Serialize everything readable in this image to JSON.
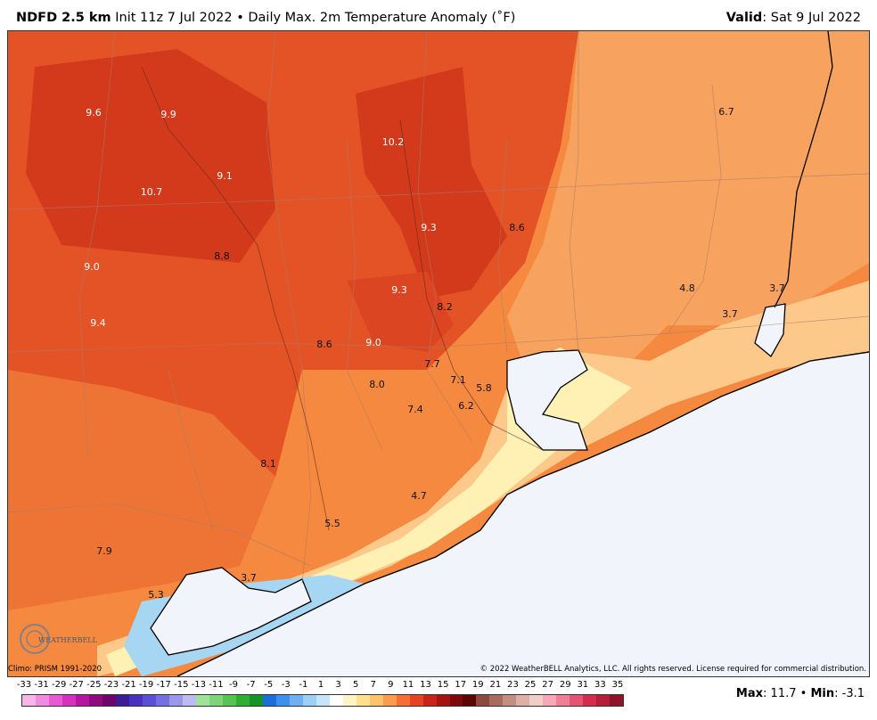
{
  "header": {
    "product": "NDFD 2.5 km",
    "init": "Init 11z 7 Jul 2022",
    "separator": "•",
    "description": "Daily Max. 2m Temperature Anomaly (˚F)",
    "valid_label": "Valid",
    "valid_value": ": Sat 9 Jul 2022"
  },
  "map": {
    "labels": [
      {
        "text": "9.6",
        "light": true
      },
      {
        "text": "9.9",
        "light": true
      },
      {
        "text": "10.2",
        "light": true
      },
      {
        "text": "6.7",
        "light": false
      },
      {
        "text": "9.1",
        "light": true
      },
      {
        "text": "10.7",
        "light": true
      },
      {
        "text": "9.3",
        "light": true
      },
      {
        "text": "8.6",
        "light": false
      },
      {
        "text": "9.0",
        "light": true
      },
      {
        "text": "8.8",
        "light": false
      },
      {
        "text": "9.3",
        "light": true
      },
      {
        "text": "8.2",
        "light": false
      },
      {
        "text": "4.8",
        "light": false
      },
      {
        "text": "3.7",
        "light": false
      },
      {
        "text": "3.7",
        "light": false
      },
      {
        "text": "9.4",
        "light": true
      },
      {
        "text": "8.6",
        "light": false
      },
      {
        "text": "9.0",
        "light": true
      },
      {
        "text": "7.7",
        "light": false
      },
      {
        "text": "7.1",
        "light": false
      },
      {
        "text": "5.8",
        "light": false
      },
      {
        "text": "8.0",
        "light": false
      },
      {
        "text": "7.4",
        "light": false
      },
      {
        "text": "6.2",
        "light": false
      },
      {
        "text": "8.1",
        "light": false
      },
      {
        "text": "4.7",
        "light": false
      },
      {
        "text": "5.5",
        "light": false
      },
      {
        "text": "7.9",
        "light": false
      },
      {
        "text": "3.7",
        "light": false
      },
      {
        "text": "5.3",
        "light": false
      }
    ],
    "logo_text": "WEATHERBELL",
    "colors": {
      "hot": "#d93a1b",
      "warm": "#ee6a2b",
      "mild": "#f99a55",
      "cool": "#fbc98a",
      "pale": "#fff1b8",
      "cold": "#a9d9f2",
      "water": "#f1f4fb",
      "coast": "#000000"
    }
  },
  "footer": {
    "climo": "Climo: PRISM 1991-2020",
    "copyright": "© 2022 WeatherBELL Analytics, LLC. All rights reserved. License required for commercial distribution."
  },
  "colorbar": {
    "ticks": [
      "-33",
      "-31",
      "-29",
      "-27",
      "-25",
      "-23",
      "-21",
      "-19",
      "-17",
      "-15",
      "-13",
      "-11",
      "-9",
      "-7",
      "-5",
      "-3",
      "-1",
      "1",
      "3",
      "5",
      "7",
      "9",
      "11",
      "13",
      "15",
      "17",
      "19",
      "21",
      "23",
      "25",
      "27",
      "29",
      "31",
      "33",
      "35"
    ],
    "colors": [
      "#f7b5e8",
      "#f08ce0",
      "#e85ad2",
      "#d631bd",
      "#b4169f",
      "#8f0a80",
      "#6d056a",
      "#3c1e94",
      "#4a32c0",
      "#5b4fd6",
      "#7570e0",
      "#9a98ea",
      "#bebbf1",
      "#9fe29b",
      "#7dd578",
      "#55c453",
      "#2fae2f",
      "#18932a",
      "#1c6fd8",
      "#3f90ea",
      "#6eb0f1",
      "#9cd0f5",
      "#c4e6f8",
      "#ffffff",
      "#fff4c4",
      "#fee08f",
      "#fdc26a",
      "#fb9b4d",
      "#f56f34",
      "#e54422",
      "#c9241a",
      "#a51313",
      "#7d0909",
      "#5a0606",
      "#8b4a3c",
      "#a86b5f",
      "#c48e84",
      "#ddb0a7",
      "#f1cfc8",
      "#f7a8b8",
      "#f07e95",
      "#e55573",
      "#d42c4f",
      "#b51f3c",
      "#8f1428"
    ],
    "max_label": "Max",
    "max_value": ": 11.7",
    "sep": "•",
    "min_label": "Min",
    "min_value": ": -3.1"
  }
}
